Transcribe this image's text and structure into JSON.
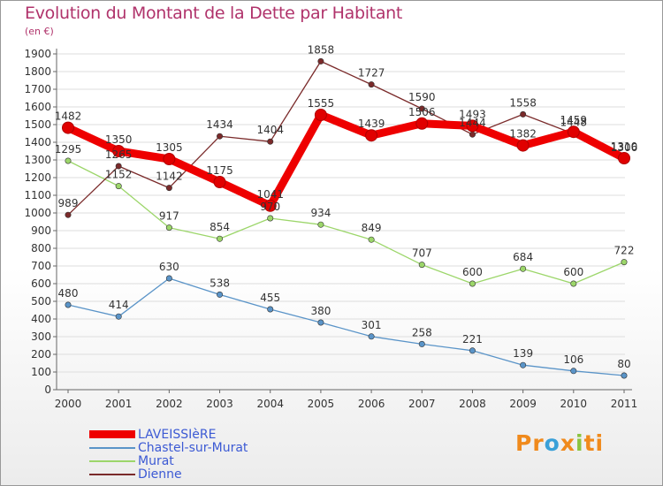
{
  "title": "Evolution du Montant de la Dette par Habitant",
  "unit_label": "(en €)",
  "logo_text": [
    "Pr",
    "o",
    "x",
    "i",
    "ti"
  ],
  "chart_data": {
    "type": "line",
    "title": "Evolution du Montant de la Dette par Habitant",
    "ylabel": "(en €)",
    "x": [
      "2000",
      "2001",
      "2002",
      "2003",
      "2004",
      "2005",
      "2006",
      "2007",
      "2008",
      "2009",
      "2010",
      "2011"
    ],
    "ylim": [
      0,
      1900
    ],
    "yticks": [
      0,
      100,
      200,
      300,
      400,
      500,
      600,
      700,
      800,
      900,
      1000,
      1100,
      1200,
      1300,
      1400,
      1500,
      1600,
      1700,
      1800,
      1900
    ],
    "grid": "horizontal",
    "legend_position": "bottom-left",
    "series": [
      {
        "name": "LAVEISSIèRE",
        "color": "#ee0000",
        "values": [
          1482,
          1350,
          1305,
          1175,
          1041,
          1555,
          1439,
          1506,
          1493,
          1382,
          1459,
          1310
        ]
      },
      {
        "name": "Chastel-sur-Murat",
        "color": "#5a94c8",
        "values": [
          480,
          414,
          630,
          538,
          455,
          380,
          301,
          258,
          221,
          139,
          106,
          80
        ]
      },
      {
        "name": "Murat",
        "color": "#9cd66a",
        "values": [
          1295,
          1152,
          917,
          854,
          970,
          934,
          849,
          707,
          600,
          684,
          600,
          722
        ]
      },
      {
        "name": "Dienne",
        "color": "#7a2a2a",
        "values": [
          989,
          1265,
          1142,
          1434,
          1404,
          1858,
          1727,
          1590,
          1444,
          1558,
          1448,
          1306
        ]
      }
    ]
  }
}
